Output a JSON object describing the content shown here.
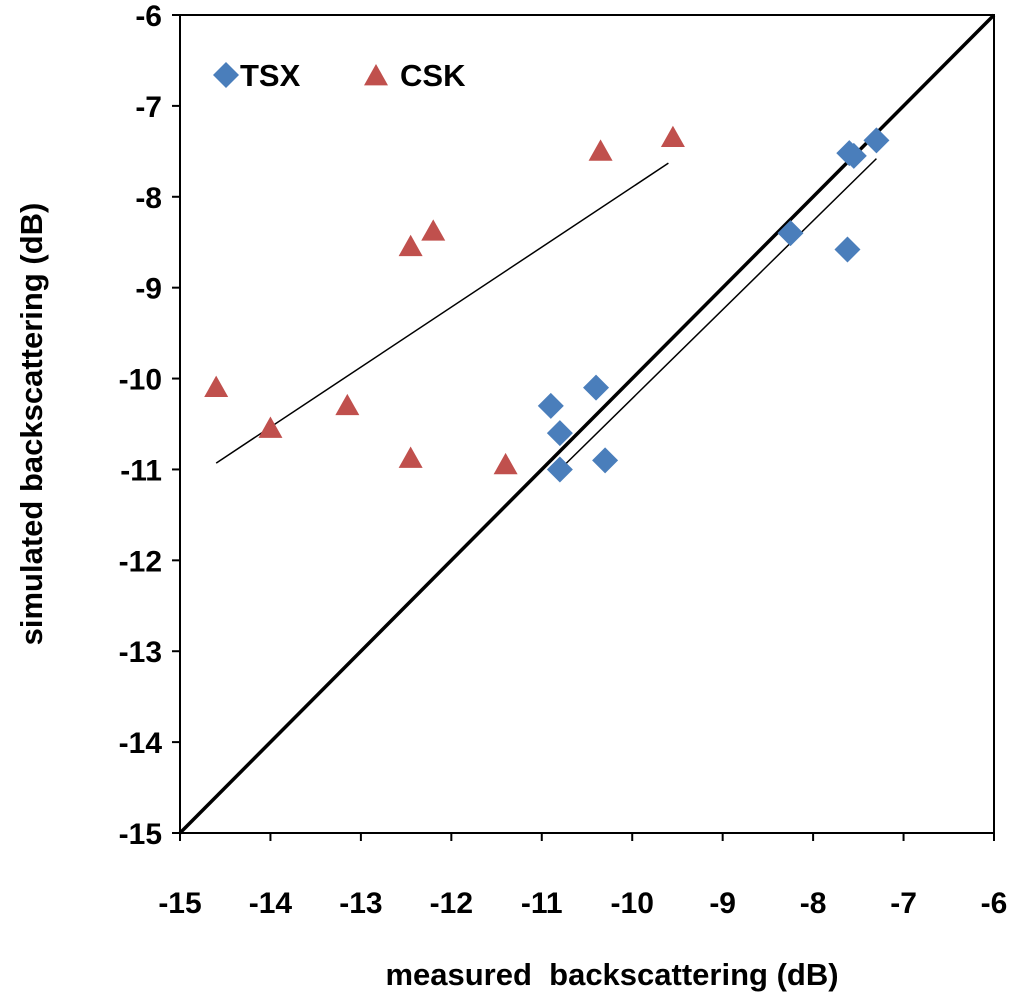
{
  "chart_data": {
    "type": "scatter",
    "title": "",
    "xlabel": "measured  backscattering (dB)",
    "ylabel": "simulated backscattering (dB)",
    "xlim": [
      -15,
      -6
    ],
    "ylim": [
      -15,
      -6
    ],
    "xticks": [
      -15,
      -14,
      -13,
      -12,
      -11,
      -10,
      -9,
      -8,
      -7,
      -6
    ],
    "yticks": [
      -15,
      -14,
      -13,
      -12,
      -11,
      -10,
      -9,
      -8,
      -7,
      -6
    ],
    "xtick_labels": [
      "-15",
      "-14",
      "-13",
      "-12",
      "-11",
      "-10",
      "-9",
      "-8",
      "-7",
      "-6"
    ],
    "ytick_labels": [
      "-15",
      "-14",
      "-13",
      "-12",
      "-11",
      "-10",
      "-9",
      "-8",
      "-7",
      "-6"
    ],
    "grid": false,
    "legend_position": "top-left",
    "series": [
      {
        "name": "TSX",
        "marker": "diamond",
        "color": "#4a7ebb",
        "x": [
          -10.9,
          -10.8,
          -10.8,
          -10.4,
          -10.3,
          -8.25,
          -7.62,
          -7.6,
          -7.55,
          -7.3
        ],
        "y": [
          -10.3,
          -10.6,
          -11.0,
          -10.1,
          -10.9,
          -8.4,
          -8.58,
          -7.52,
          -7.55,
          -7.38
        ]
      },
      {
        "name": "CSK",
        "marker": "triangle",
        "color": "#c0504d",
        "x": [
          -14.6,
          -14.0,
          -13.15,
          -12.45,
          -12.45,
          -12.2,
          -11.4,
          -10.35,
          -9.55
        ],
        "y": [
          -10.1,
          -10.55,
          -10.3,
          -10.88,
          -8.55,
          -8.38,
          -10.95,
          -7.5,
          -7.35
        ]
      }
    ],
    "lines": [
      {
        "name": "1:1 line",
        "color": "#000000",
        "x": [
          -15,
          -6
        ],
        "y": [
          -15,
          -6
        ]
      },
      {
        "name": "CSK trend",
        "color": "#000000",
        "x": [
          -14.6,
          -9.6
        ],
        "y": [
          -10.93,
          -7.63
        ]
      },
      {
        "name": "TSX trend",
        "color": "#000000",
        "x": [
          -10.85,
          -7.3
        ],
        "y": [
          -11.05,
          -7.58
        ]
      }
    ]
  }
}
